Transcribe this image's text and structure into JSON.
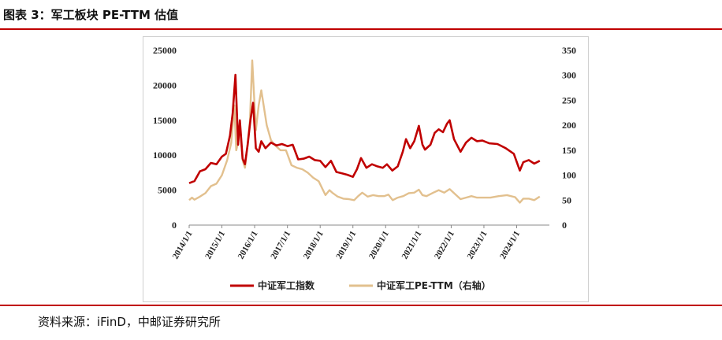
{
  "figure": {
    "title": "图表 3：军工板块 PE-TTM 估值",
    "source": "资料来源：iFinD，中邮证券研究所"
  },
  "colors": {
    "accent_rule": "#c00000",
    "index_line": "#c00000",
    "pe_line": "#e2c08e"
  },
  "chart_data": {
    "type": "line",
    "title": "",
    "xlabel": "",
    "ylabel": "",
    "y_left": {
      "lim": [
        0,
        25000
      ],
      "ticks": [
        "25000",
        "20000",
        "15000",
        "10000",
        "5000",
        "0"
      ]
    },
    "y_right": {
      "lim": [
        0,
        350
      ],
      "ticks": [
        "350",
        "300",
        "250",
        "200",
        "150",
        "100",
        "50",
        "0"
      ]
    },
    "x_range": [
      "2014-01-01",
      "2024-12-31"
    ],
    "x_ticks": [
      "2014/1/1",
      "2015/1/1",
      "2016/1/1",
      "2017/1/1",
      "2018/1/1",
      "2019/1/1",
      "2020/1/1",
      "2021/1/1",
      "2022/1/1",
      "2023/1/1",
      "2024/1/1"
    ],
    "grid": false,
    "legend_position": "bottom",
    "series": [
      {
        "name": "中证军工指数",
        "axis": "left",
        "color": "#c00000",
        "points": [
          [
            "2014-01-01",
            6000
          ],
          [
            "2014-03-01",
            6300
          ],
          [
            "2014-05-01",
            7700
          ],
          [
            "2014-07-01",
            8000
          ],
          [
            "2014-09-01",
            8900
          ],
          [
            "2014-11-01",
            8700
          ],
          [
            "2015-01-01",
            9800
          ],
          [
            "2015-02-15",
            10200
          ],
          [
            "2015-04-01",
            12800
          ],
          [
            "2015-05-01",
            16000
          ],
          [
            "2015-06-01",
            21500
          ],
          [
            "2015-07-01",
            11500
          ],
          [
            "2015-07-20",
            15000
          ],
          [
            "2015-08-20",
            9500
          ],
          [
            "2015-09-15",
            8700
          ],
          [
            "2015-10-15",
            11500
          ],
          [
            "2015-11-15",
            15000
          ],
          [
            "2015-12-15",
            17500
          ],
          [
            "2016-01-15",
            11000
          ],
          [
            "2016-02-15",
            10500
          ],
          [
            "2016-03-15",
            12000
          ],
          [
            "2016-05-01",
            11000
          ],
          [
            "2016-07-01",
            11800
          ],
          [
            "2016-09-01",
            11400
          ],
          [
            "2016-11-01",
            11600
          ],
          [
            "2017-01-01",
            11300
          ],
          [
            "2017-03-01",
            11500
          ],
          [
            "2017-05-01",
            9400
          ],
          [
            "2017-07-01",
            9500
          ],
          [
            "2017-09-01",
            9800
          ],
          [
            "2017-11-01",
            9300
          ],
          [
            "2018-01-01",
            9200
          ],
          [
            "2018-03-01",
            8300
          ],
          [
            "2018-05-01",
            9200
          ],
          [
            "2018-07-01",
            7600
          ],
          [
            "2018-09-01",
            7400
          ],
          [
            "2018-11-01",
            7200
          ],
          [
            "2019-01-01",
            6900
          ],
          [
            "2019-02-15",
            8000
          ],
          [
            "2019-04-01",
            9600
          ],
          [
            "2019-06-01",
            8200
          ],
          [
            "2019-08-01",
            8700
          ],
          [
            "2019-10-01",
            8400
          ],
          [
            "2019-12-01",
            8200
          ],
          [
            "2020-01-15",
            8700
          ],
          [
            "2020-03-15",
            7800
          ],
          [
            "2020-05-15",
            8400
          ],
          [
            "2020-07-10",
            10500
          ],
          [
            "2020-08-15",
            12300
          ],
          [
            "2020-10-01",
            11000
          ],
          [
            "2020-11-15",
            12000
          ],
          [
            "2021-01-05",
            14200
          ],
          [
            "2021-02-15",
            11500
          ],
          [
            "2021-03-15",
            10800
          ],
          [
            "2021-05-15",
            11500
          ],
          [
            "2021-07-01",
            13200
          ],
          [
            "2021-08-15",
            13700
          ],
          [
            "2021-10-01",
            13300
          ],
          [
            "2021-11-15",
            14500
          ],
          [
            "2021-12-15",
            15000
          ],
          [
            "2022-02-01",
            12300
          ],
          [
            "2022-04-15",
            10500
          ],
          [
            "2022-06-15",
            11800
          ],
          [
            "2022-08-15",
            12500
          ],
          [
            "2022-10-15",
            12000
          ],
          [
            "2022-12-15",
            12100
          ],
          [
            "2023-03-01",
            11700
          ],
          [
            "2023-06-01",
            11600
          ],
          [
            "2023-09-01",
            11000
          ],
          [
            "2023-12-01",
            10200
          ],
          [
            "2024-02-05",
            7800
          ],
          [
            "2024-03-15",
            9000
          ],
          [
            "2024-05-15",
            9300
          ],
          [
            "2024-07-15",
            8800
          ],
          [
            "2024-09-15",
            9200
          ]
        ]
      },
      {
        "name": "中证军工PE-TTM（右轴）",
        "axis": "right",
        "color": "#e2c08e",
        "points": [
          [
            "2014-01-01",
            50
          ],
          [
            "2014-02-01",
            55
          ],
          [
            "2014-03-01",
            51
          ],
          [
            "2014-05-01",
            57
          ],
          [
            "2014-07-01",
            64
          ],
          [
            "2014-09-01",
            78
          ],
          [
            "2014-11-01",
            83
          ],
          [
            "2015-01-01",
            100
          ],
          [
            "2015-03-01",
            130
          ],
          [
            "2015-04-15",
            165
          ],
          [
            "2015-05-20",
            240
          ],
          [
            "2015-06-10",
            150
          ],
          [
            "2015-07-01",
            165
          ],
          [
            "2015-07-20",
            200
          ],
          [
            "2015-08-20",
            130
          ],
          [
            "2015-09-15",
            115
          ],
          [
            "2015-10-10",
            155
          ],
          [
            "2015-11-10",
            210
          ],
          [
            "2015-12-05",
            330
          ],
          [
            "2016-01-15",
            190
          ],
          [
            "2016-02-15",
            240
          ],
          [
            "2016-03-15",
            270
          ],
          [
            "2016-05-15",
            200
          ],
          [
            "2016-07-01",
            170
          ],
          [
            "2016-08-15",
            160
          ],
          [
            "2016-10-15",
            150
          ],
          [
            "2016-12-15",
            150
          ],
          [
            "2017-02-15",
            120
          ],
          [
            "2017-04-15",
            115
          ],
          [
            "2017-06-15",
            112
          ],
          [
            "2017-08-15",
            105
          ],
          [
            "2017-10-15",
            95
          ],
          [
            "2017-12-15",
            88
          ],
          [
            "2018-03-01",
            60
          ],
          [
            "2018-04-15",
            70
          ],
          [
            "2018-05-15",
            65
          ],
          [
            "2018-07-15",
            57
          ],
          [
            "2018-09-15",
            53
          ],
          [
            "2018-11-15",
            52
          ],
          [
            "2019-01-15",
            50
          ],
          [
            "2019-03-01",
            58
          ],
          [
            "2019-04-15",
            65
          ],
          [
            "2019-06-15",
            57
          ],
          [
            "2019-08-15",
            60
          ],
          [
            "2019-10-15",
            58
          ],
          [
            "2019-12-15",
            58
          ],
          [
            "2020-02-01",
            61
          ],
          [
            "2020-03-20",
            50
          ],
          [
            "2020-05-15",
            55
          ],
          [
            "2020-07-15",
            58
          ],
          [
            "2020-09-15",
            64
          ],
          [
            "2020-11-15",
            65
          ],
          [
            "2021-01-05",
            71
          ],
          [
            "2021-02-15",
            60
          ],
          [
            "2021-04-01",
            58
          ],
          [
            "2021-06-15",
            65
          ],
          [
            "2021-08-15",
            70
          ],
          [
            "2021-10-15",
            65
          ],
          [
            "2021-12-15",
            72
          ],
          [
            "2022-02-15",
            62
          ],
          [
            "2022-04-15",
            52
          ],
          [
            "2022-06-15",
            55
          ],
          [
            "2022-08-15",
            58
          ],
          [
            "2022-10-15",
            55
          ],
          [
            "2022-12-15",
            55
          ],
          [
            "2023-03-15",
            55
          ],
          [
            "2023-06-15",
            58
          ],
          [
            "2023-09-15",
            60
          ],
          [
            "2023-12-15",
            56
          ],
          [
            "2024-02-05",
            45
          ],
          [
            "2024-03-15",
            53
          ],
          [
            "2024-05-15",
            53
          ],
          [
            "2024-07-15",
            50
          ],
          [
            "2024-09-15",
            57
          ]
        ]
      }
    ]
  }
}
